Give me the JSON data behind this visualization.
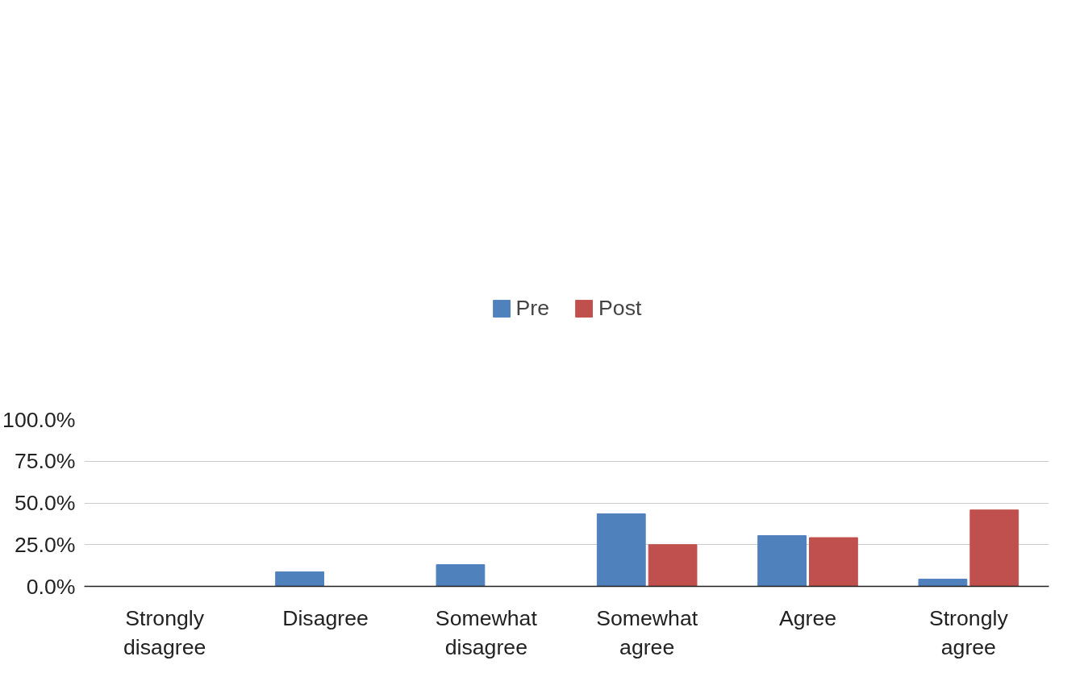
{
  "chart_data": {
    "type": "bar",
    "categories": [
      "Strongly disagree",
      "Disagree",
      "Somewhat disagree",
      "Somewhat agree",
      "Agree",
      "Strongly agree"
    ],
    "series": [
      {
        "name": "Pre",
        "color": "#4f81bd",
        "values": [
          0,
          8.7,
          13.0,
          43.5,
          30.4,
          4.3
        ]
      },
      {
        "name": "Post",
        "color": "#c0504d",
        "values": [
          0,
          0,
          0,
          25.0,
          29.2,
          45.8
        ]
      }
    ],
    "ylim": [
      0,
      100
    ],
    "yticks": [
      {
        "value": 0,
        "label": "0.0%"
      },
      {
        "value": 25,
        "label": "25.0%"
      },
      {
        "value": 50,
        "label": "50.0%"
      },
      {
        "value": 75,
        "label": "75.0%"
      },
      {
        "value": 100,
        "label": "100.0%"
      }
    ],
    "grid": "y",
    "legend": "top"
  }
}
